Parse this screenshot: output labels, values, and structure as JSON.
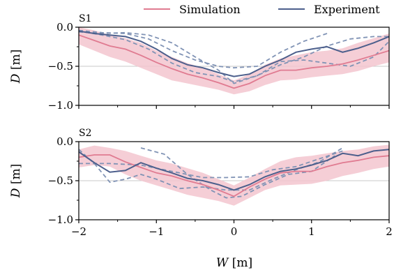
{
  "figure": {
    "x_axis_title": "W [m]",
    "x_axis_title_italic": "W",
    "x_axis_title_unit": " [m]",
    "y_axis_title_italic": "D",
    "y_axis_title_unit": " [m]"
  },
  "legend": {
    "items": [
      {
        "label": "Simulation",
        "color": "#e07b91"
      },
      {
        "label": "Experiment",
        "color": "#4c5f8c"
      }
    ]
  },
  "colors": {
    "simulation_line": "#e07b91",
    "simulation_band": "#f3c5cf",
    "experiment_line": "#4c5f8c",
    "experiment_dashed": "#8093b5",
    "grid_line": "#c8c8c8"
  },
  "chart_data": [
    {
      "type": "line",
      "panel_label": "S1",
      "xlabel": "",
      "ylabel": "D [m]",
      "xlim": [
        -2,
        2
      ],
      "ylim": [
        -1.0,
        0.0
      ],
      "x_ticks": [
        -2,
        -1,
        0,
        1,
        2
      ],
      "x_tick_labels": [],
      "y_ticks": [
        0.0,
        -0.5,
        -1.0
      ],
      "y_tick_labels": [
        "0.0",
        "−0.5",
        "−1.0"
      ],
      "horizontal_gridlines": [
        -0.5
      ],
      "legend_position": "top",
      "simulation": {
        "name": "Simulation",
        "x": [
          -2.0,
          -1.8,
          -1.6,
          -1.4,
          -1.2,
          -1.0,
          -0.8,
          -0.6,
          -0.4,
          -0.2,
          0.0,
          0.2,
          0.4,
          0.6,
          0.8,
          1.0,
          1.2,
          1.4,
          1.6,
          1.8,
          2.0
        ],
        "mean": [
          -0.1,
          -0.17,
          -0.24,
          -0.28,
          -0.36,
          -0.45,
          -0.53,
          -0.6,
          -0.65,
          -0.71,
          -0.78,
          -0.72,
          -0.62,
          -0.55,
          -0.55,
          -0.52,
          -0.5,
          -0.47,
          -0.42,
          -0.36,
          -0.3
        ],
        "lower": [
          -0.22,
          -0.3,
          -0.38,
          -0.44,
          -0.52,
          -0.6,
          -0.68,
          -0.72,
          -0.76,
          -0.8,
          -0.86,
          -0.82,
          -0.74,
          -0.68,
          -0.67,
          -0.64,
          -0.62,
          -0.6,
          -0.56,
          -0.5,
          -0.45
        ],
        "upper": [
          0.0,
          -0.04,
          -0.1,
          -0.14,
          -0.2,
          -0.3,
          -0.38,
          -0.46,
          -0.52,
          -0.6,
          -0.68,
          -0.6,
          -0.48,
          -0.4,
          -0.36,
          -0.32,
          -0.3,
          -0.27,
          -0.2,
          -0.14,
          -0.08
        ]
      },
      "experiment": {
        "name": "Experiment",
        "x": [
          -2.0,
          -1.8,
          -1.6,
          -1.4,
          -1.2,
          -1.0,
          -0.8,
          -0.6,
          -0.4,
          -0.2,
          0.0,
          0.2,
          0.4,
          0.6,
          0.8,
          1.0,
          1.2,
          1.4,
          1.6,
          1.8,
          2.0
        ],
        "y": [
          -0.05,
          -0.08,
          -0.1,
          -0.12,
          -0.18,
          -0.28,
          -0.4,
          -0.48,
          -0.52,
          -0.58,
          -0.63,
          -0.6,
          -0.5,
          -0.42,
          -0.32,
          -0.28,
          -0.25,
          -0.32,
          -0.27,
          -0.2,
          -0.12
        ]
      },
      "experiment_runs": [
        {
          "x": [
            -2.0,
            -1.7,
            -1.4,
            -1.1,
            -0.8,
            -0.5,
            -0.2,
            0.0,
            0.3,
            0.6,
            0.9,
            1.2
          ],
          "y": [
            -0.04,
            -0.07,
            -0.08,
            -0.15,
            -0.3,
            -0.42,
            -0.5,
            -0.52,
            -0.5,
            -0.32,
            -0.18,
            -0.08
          ]
        },
        {
          "x": [
            -2.0,
            -1.7,
            -1.4,
            -1.1,
            -0.8,
            -0.5,
            -0.2,
            0.0,
            0.3,
            0.6,
            0.9,
            1.2,
            1.5,
            1.8,
            2.0
          ],
          "y": [
            -0.06,
            -0.08,
            -0.07,
            -0.1,
            -0.2,
            -0.38,
            -0.55,
            -0.72,
            -0.62,
            -0.48,
            -0.38,
            -0.24,
            -0.15,
            -0.12,
            -0.12
          ]
        },
        {
          "x": [
            -2.0,
            -1.7,
            -1.4,
            -1.1,
            -0.8,
            -0.5,
            -0.2,
            0.0,
            0.3,
            0.6,
            0.9,
            1.2,
            1.5,
            1.8,
            2.0
          ],
          "y": [
            -0.05,
            -0.1,
            -0.16,
            -0.28,
            -0.46,
            -0.58,
            -0.63,
            -0.7,
            -0.62,
            -0.44,
            -0.42,
            -0.46,
            -0.5,
            -0.38,
            -0.18
          ]
        }
      ]
    },
    {
      "type": "line",
      "panel_label": "S2",
      "xlabel": "W [m]",
      "ylabel": "D [m]",
      "xlim": [
        -2,
        2
      ],
      "ylim": [
        -1.0,
        0.0
      ],
      "x_ticks": [
        -2,
        -1,
        0,
        1,
        2
      ],
      "x_tick_labels": [
        "−2",
        "−1",
        "0",
        "1",
        "2"
      ],
      "y_ticks": [
        0.0,
        -0.5,
        -1.0
      ],
      "y_tick_labels": [
        "0.0",
        "−0.5",
        "−1.0"
      ],
      "horizontal_gridlines": [
        -0.5
      ],
      "simulation": {
        "name": "Simulation",
        "x": [
          -2.0,
          -1.8,
          -1.6,
          -1.4,
          -1.2,
          -1.0,
          -0.8,
          -0.6,
          -0.4,
          -0.2,
          0.0,
          0.2,
          0.4,
          0.6,
          0.8,
          1.0,
          1.2,
          1.4,
          1.6,
          1.8,
          2.0
        ],
        "mean": [
          -0.2,
          -0.17,
          -0.17,
          -0.26,
          -0.33,
          -0.4,
          -0.44,
          -0.5,
          -0.55,
          -0.62,
          -0.7,
          -0.58,
          -0.48,
          -0.4,
          -0.38,
          -0.38,
          -0.32,
          -0.27,
          -0.24,
          -0.2,
          -0.18
        ],
        "lower": [
          -0.33,
          -0.3,
          -0.32,
          -0.42,
          -0.5,
          -0.56,
          -0.62,
          -0.68,
          -0.72,
          -0.76,
          -0.82,
          -0.72,
          -0.62,
          -0.56,
          -0.55,
          -0.54,
          -0.5,
          -0.44,
          -0.4,
          -0.35,
          -0.32
        ],
        "upper": [
          -0.1,
          -0.05,
          -0.08,
          -0.12,
          -0.18,
          -0.24,
          -0.28,
          -0.34,
          -0.4,
          -0.48,
          -0.56,
          -0.46,
          -0.35,
          -0.25,
          -0.2,
          -0.18,
          -0.15,
          -0.12,
          -0.1,
          -0.06,
          -0.04
        ]
      },
      "experiment": {
        "name": "Experiment",
        "x": [
          -2.0,
          -1.8,
          -1.6,
          -1.4,
          -1.2,
          -1.0,
          -0.8,
          -0.6,
          -0.4,
          -0.2,
          0.0,
          0.2,
          0.4,
          0.6,
          0.8,
          1.0,
          1.2,
          1.4,
          1.6,
          1.8,
          2.0
        ],
        "y": [
          -0.13,
          -0.27,
          -0.39,
          -0.37,
          -0.27,
          -0.34,
          -0.4,
          -0.47,
          -0.5,
          -0.55,
          -0.62,
          -0.55,
          -0.45,
          -0.38,
          -0.35,
          -0.3,
          -0.24,
          -0.15,
          -0.18,
          -0.12,
          -0.1
        ]
      },
      "experiment_runs": [
        {
          "x": [
            -2.0,
            -1.8,
            -1.6,
            -1.4,
            -1.2,
            -1.0,
            -0.7,
            -0.4,
            -0.1,
            0.2,
            0.5,
            0.8,
            1.1,
            1.4
          ],
          "y": [
            -0.1,
            -0.28,
            -0.52,
            -0.48,
            -0.42,
            -0.48,
            -0.6,
            -0.58,
            -0.62,
            -0.62,
            -0.48,
            -0.36,
            -0.26,
            -0.08
          ]
        },
        {
          "x": [
            -2.0,
            -1.6,
            -1.2,
            -0.8,
            -0.4,
            -0.1,
            0.2,
            0.5,
            0.8,
            1.1,
            1.4
          ],
          "y": [
            -0.28,
            -0.28,
            -0.3,
            -0.38,
            -0.46,
            -0.46,
            -0.45,
            -0.36,
            -0.32,
            -0.22,
            -0.12
          ]
        },
        {
          "x": [
            -1.2,
            -0.9,
            -0.6,
            -0.3,
            -0.1,
            0.1,
            0.4,
            0.7,
            1.0,
            1.3
          ],
          "y": [
            -0.08,
            -0.16,
            -0.42,
            -0.62,
            -0.72,
            -0.7,
            -0.55,
            -0.42,
            -0.38,
            -0.18
          ]
        }
      ]
    }
  ]
}
